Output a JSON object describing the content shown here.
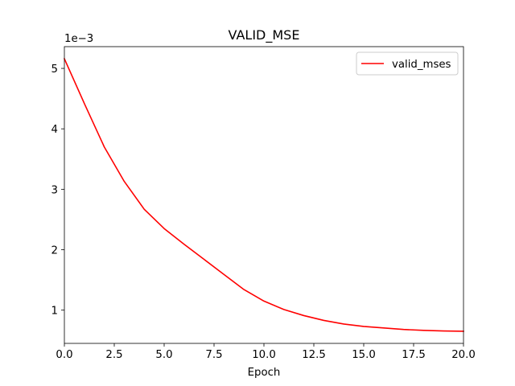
{
  "chart_data": {
    "type": "line",
    "title": "VALID_MSE",
    "xlabel": "Epoch",
    "ylabel": "",
    "y_offset_label": "1e−3",
    "xlim": [
      0,
      20
    ],
    "ylim": [
      0.00045,
      0.00536
    ],
    "x_ticks": [
      0,
      2.5,
      5,
      7.5,
      10,
      12.5,
      15,
      17.5,
      20
    ],
    "x_tick_labels": [
      "0.0",
      "2.5",
      "5.0",
      "7.5",
      "10.0",
      "12.5",
      "15.0",
      "17.5",
      "20.0"
    ],
    "y_ticks": [
      0.001,
      0.002,
      0.003,
      0.004,
      0.005
    ],
    "y_tick_labels": [
      "1",
      "2",
      "3",
      "4",
      "5"
    ],
    "grid": false,
    "legend_position": "top-right",
    "series": [
      {
        "name": "valid_mses",
        "color": "#ff0000",
        "x": [
          0,
          1,
          2,
          3,
          4,
          5,
          6,
          7,
          8,
          9,
          10,
          11,
          12,
          13,
          14,
          15,
          16,
          17,
          18,
          19,
          20
        ],
        "y": [
          0.00516,
          0.00442,
          0.0037,
          0.00313,
          0.00267,
          0.00235,
          0.00209,
          0.00184,
          0.00159,
          0.00134,
          0.00115,
          0.00101,
          0.00091,
          0.00083,
          0.00077,
          0.00073,
          0.000705,
          0.00068,
          0.000665,
          0.000655,
          0.00065
        ]
      }
    ]
  }
}
